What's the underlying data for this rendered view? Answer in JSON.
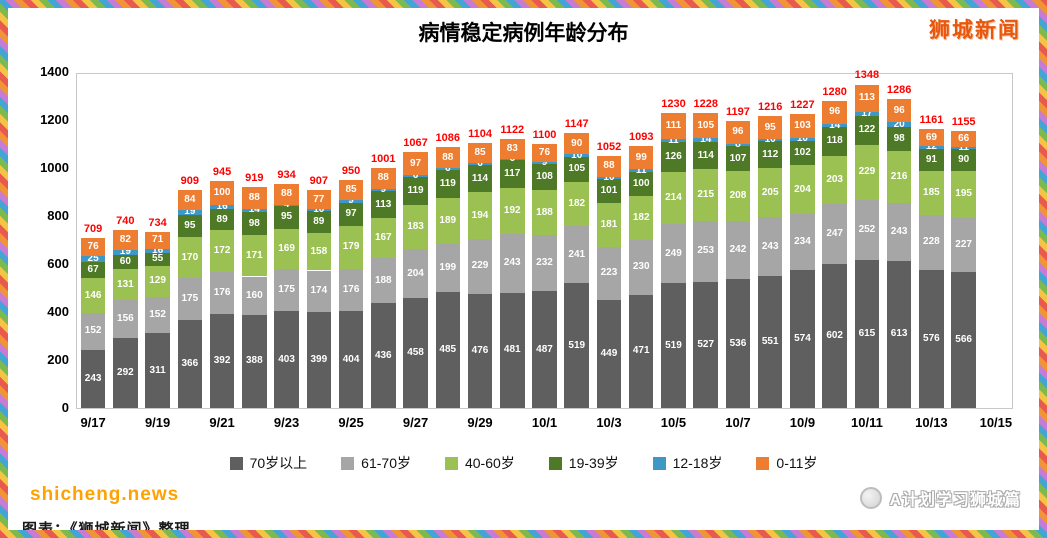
{
  "page": {
    "brand": "狮城新闻",
    "watermark_left": "shicheng.news",
    "caption_left": "图表：《狮城新闻》整理",
    "watermark_right": "A计划学习狮城篇"
  },
  "chart_data": {
    "type": "bar",
    "stacked": true,
    "title": "病情稳定病例年龄分布",
    "xlabel": "",
    "ylabel": "",
    "ylim": [
      0,
      1400
    ],
    "y_ticks": [
      0,
      200,
      400,
      600,
      800,
      1000,
      1200,
      1400
    ],
    "grid": false,
    "legend_position": "bottom",
    "total_label_color": "#ff0000",
    "categories": [
      "9/17",
      "9/18",
      "9/19",
      "9/20",
      "9/21",
      "9/22",
      "9/23",
      "9/24",
      "9/25",
      "9/26",
      "9/27",
      "9/28",
      "9/29",
      "9/30",
      "10/1",
      "10/2",
      "10/3",
      "10/4",
      "10/5",
      "10/6",
      "10/7",
      "10/8",
      "10/9",
      "10/10",
      "10/11",
      "10/12",
      "10/13",
      "10/14"
    ],
    "x_tick_labels": [
      "9/17",
      "9/19",
      "9/21",
      "9/23",
      "9/25",
      "9/27",
      "9/29",
      "10/1",
      "10/3",
      "10/5",
      "10/7",
      "10/9",
      "10/11",
      "10/13",
      "10/15"
    ],
    "series": [
      {
        "name": "70岁以上",
        "color": "#5f5f5f",
        "values": [
          243,
          292,
          311,
          366,
          392,
          388,
          403,
          399,
          404,
          436,
          458,
          485,
          476,
          481,
          487,
          519,
          449,
          471,
          519,
          527,
          536,
          551,
          574,
          602,
          615,
          613,
          576,
          566
        ]
      },
      {
        "name": "61-70岁",
        "color": "#a6a6a6",
        "values": [
          152,
          156,
          152,
          175,
          176,
          160,
          175,
          174,
          176,
          188,
          204,
          199,
          229,
          243,
          232,
          241,
          223,
          230,
          249,
          253,
          242,
          243,
          234,
          247,
          252,
          243,
          228,
          227
        ]
      },
      {
        "name": "40-60岁",
        "color": "#9cc153",
        "values": [
          146,
          131,
          129,
          170,
          172,
          171,
          169,
          158,
          179,
          167,
          183,
          189,
          194,
          192,
          188,
          182,
          181,
          182,
          214,
          215,
          208,
          205,
          204,
          203,
          229,
          216,
          185,
          195
        ]
      },
      {
        "name": "19-39岁",
        "color": "#4e7a27",
        "values": [
          67,
          60,
          55,
          95,
          89,
          98,
          95,
          89,
          97,
          113,
          119,
          119,
          114,
          117,
          108,
          105,
          101,
          100,
          126,
          114,
          107,
          112,
          102,
          118,
          122,
          98,
          91,
          90
        ]
      },
      {
        "name": "12-18岁",
        "color": "#3e97c5",
        "values": [
          25,
          19,
          16,
          19,
          16,
          14,
          4,
          10,
          9,
          9,
          6,
          6,
          6,
          6,
          9,
          10,
          10,
          11,
          11,
          14,
          8,
          10,
          10,
          14,
          17,
          20,
          12,
          11
        ]
      },
      {
        "name": "0-11岁",
        "color": "#ed7d31",
        "values": [
          76,
          82,
          71,
          84,
          100,
          88,
          88,
          77,
          85,
          88,
          97,
          88,
          85,
          83,
          76,
          90,
          88,
          99,
          111,
          105,
          96,
          95,
          103,
          96,
          113,
          96,
          69,
          66
        ]
      }
    ],
    "totals": [
      709,
      740,
      734,
      909,
      945,
      919,
      934,
      907,
      950,
      1001,
      1067,
      1086,
      1104,
      1122,
      1100,
      1147,
      1052,
      1093,
      1230,
      1228,
      1197,
      1216,
      1227,
      1280,
      1348,
      1286,
      1161,
      1155
    ]
  }
}
